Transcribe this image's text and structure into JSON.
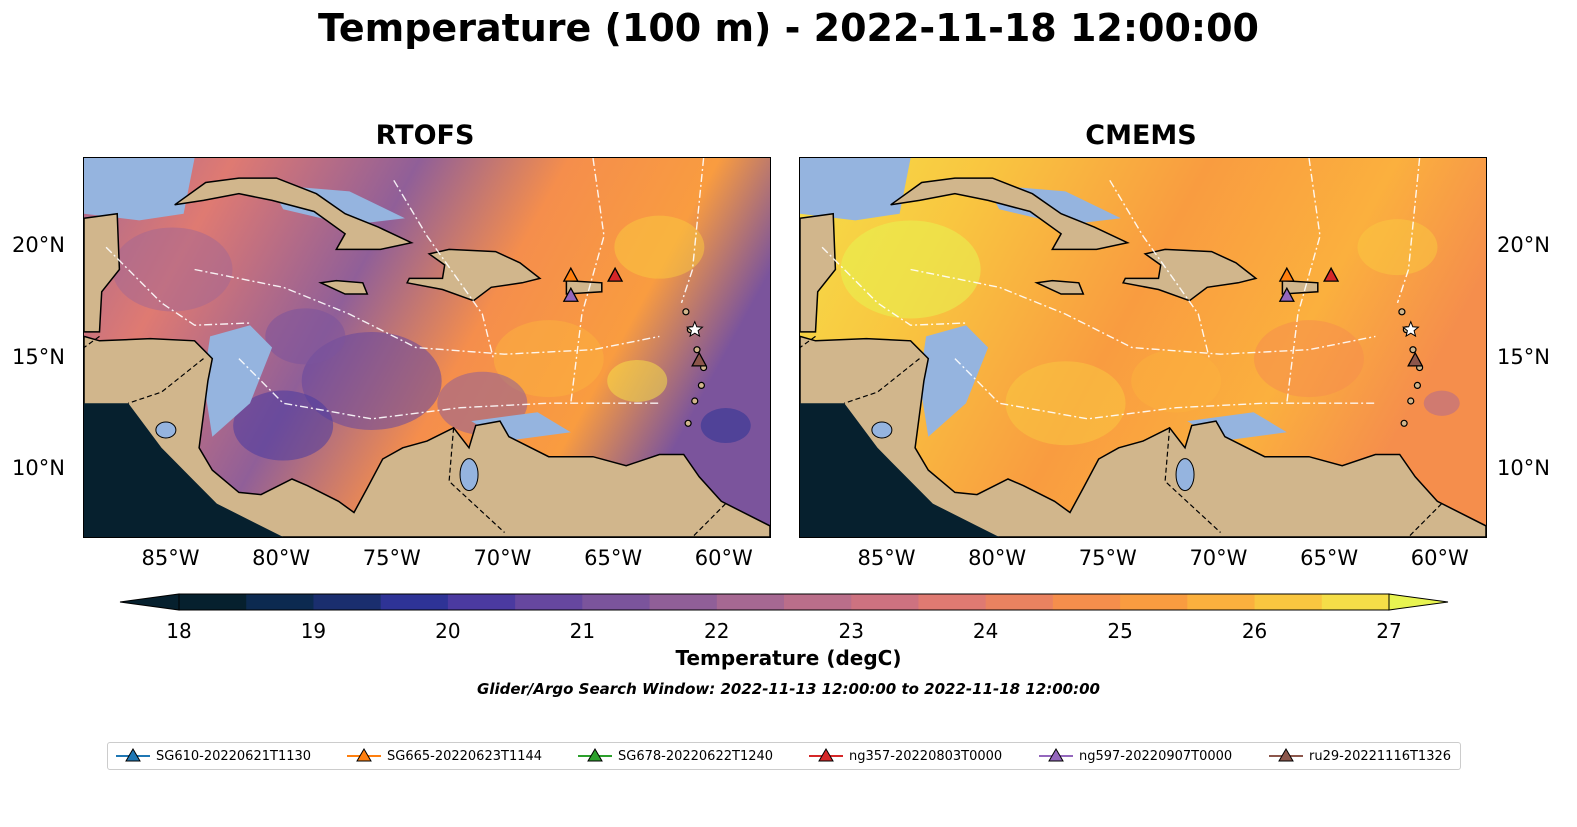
{
  "title": "Temperature (100 m) - 2022-11-18 12:00:00",
  "panels": [
    {
      "title": "RTOFS",
      "style": "rtofs"
    },
    {
      "title": "CMEMS",
      "style": "cmems"
    }
  ],
  "lon_ticks": [
    "85°W",
    "80°W",
    "75°W",
    "70°W",
    "65°W",
    "60°W"
  ],
  "lon_tick_values": [
    -85,
    -80,
    -75,
    -70,
    -65,
    -60
  ],
  "lat_ticks": [
    "20°N",
    "15°N",
    "10°N"
  ],
  "lat_tick_values": [
    20,
    15,
    10
  ],
  "extent": {
    "lon": [
      -89,
      -58
    ],
    "lat": [
      7,
      24
    ]
  },
  "colorbar": {
    "label": "Temperature (degC)",
    "ticks": [
      "18",
      "19",
      "20",
      "21",
      "22",
      "23",
      "24",
      "25",
      "26",
      "27"
    ],
    "colors": [
      "#06202e",
      "#0c2a50",
      "#1a2e6e",
      "#2e3396",
      "#4b3aa0",
      "#66479f",
      "#7b549c",
      "#905f98",
      "#a66892",
      "#ba6e8a",
      "#cd7280",
      "#df7a72",
      "#ea8260",
      "#f58e4c",
      "#f99c40",
      "#fbb03e",
      "#f9c640",
      "#f5de48",
      "#e8f451"
    ]
  },
  "search_window": "Glider/Argo Search Window: 2022-11-13 12:00:00 to 2022-11-18 12:00:00",
  "legend": [
    {
      "label": "SG610-20220621T1130",
      "color": "#1f77b4"
    },
    {
      "label": "SG665-20220623T1144",
      "color": "#ff7f0e"
    },
    {
      "label": "SG678-20220622T1240",
      "color": "#2ca02c"
    },
    {
      "label": "ng357-20220803T0000",
      "color": "#d62728"
    },
    {
      "label": "ng597-20220907T0000",
      "color": "#9467bd"
    },
    {
      "label": "ru29-20221116T1326",
      "color": "#8c564b"
    }
  ],
  "markers": [
    {
      "name": "sg665",
      "lon": -67.0,
      "lat": 18.7,
      "color": "#ff7f0e",
      "shape": "triangle"
    },
    {
      "name": "ng357",
      "lon": -65.0,
      "lat": 18.7,
      "color": "#d62728",
      "shape": "triangle"
    },
    {
      "name": "ng597",
      "lon": -67.0,
      "lat": 17.8,
      "color": "#9467bd",
      "shape": "triangle"
    },
    {
      "name": "ru29",
      "lon": -61.2,
      "lat": 14.9,
      "color": "#8c564b",
      "shape": "triangle"
    },
    {
      "name": "argo",
      "lon": -61.4,
      "lat": 16.3,
      "color": "#ffffff",
      "shape": "star"
    }
  ],
  "colors": {
    "land": "#d1b68c",
    "shallow": "#95b4df",
    "pacific": "#06202e"
  }
}
